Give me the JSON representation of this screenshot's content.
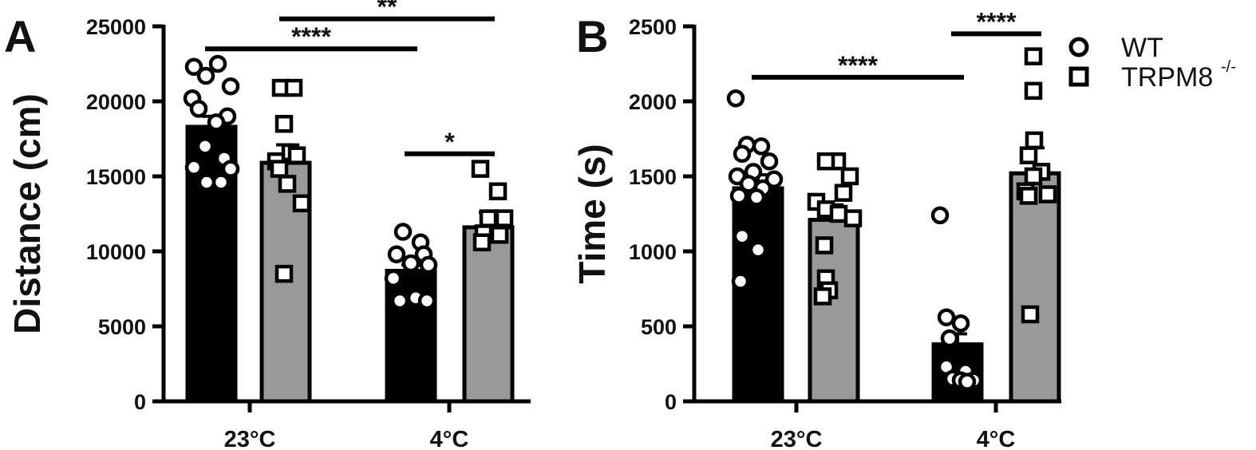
{
  "colors": {
    "wt_bar": "#000000",
    "ko_bar": "#999999",
    "marker_fill": "#ffffff",
    "marker_stroke": "#000000",
    "axis": "#000000"
  },
  "legend": {
    "placement": "top-right",
    "items": [
      {
        "label": "WT",
        "marker": "circle"
      },
      {
        "label": "TRPM8",
        "superscript": "-/-",
        "marker": "square"
      }
    ]
  },
  "chart_data": [
    {
      "panel": "A",
      "type": "bar",
      "ylabel": "Distance (cm)",
      "ylim": [
        0,
        25000
      ],
      "yticks": [
        0,
        5000,
        10000,
        15000,
        20000,
        25000
      ],
      "ytick_labels": [
        "0",
        "5000",
        "10000",
        "15000",
        "20000",
        "25000"
      ],
      "categories": [
        "23°C",
        "4°C"
      ],
      "series": [
        {
          "name": "WT",
          "marker": "circle",
          "values": [
            18300,
            8700
          ],
          "sem": [
            700,
            400
          ],
          "points": [
            [
              22300,
              21700,
              22500,
              21000,
              20200,
              19000,
              19500,
              18600,
              17000,
              16200,
              15600,
              15500,
              14600,
              14600
            ],
            [
              11300,
              10600,
              9800,
              9800,
              9200,
              9100,
              8200,
              6900,
              6700,
              6700
            ]
          ]
        },
        {
          "name": "TRPM8-/-",
          "marker": "square",
          "values": [
            15900,
            11600
          ],
          "sem": [
            1200,
            1000
          ],
          "points": [
            [
              20900,
              20900,
              18500,
              16600,
              16400,
              16000,
              15500,
              14500,
              13200,
              8500
            ],
            [
              15500,
              14000,
              12200,
              12200,
              11200,
              11100,
              10600
            ]
          ]
        }
      ],
      "significance": [
        {
          "label": "****",
          "from": "23°C WT",
          "to": "4°C WT",
          "y": 23500
        },
        {
          "label": "**",
          "from": "23°C TRPM8-/-",
          "to": "4°C TRPM8-/-",
          "y": 25500
        },
        {
          "label": "*",
          "from": "4°C WT",
          "to": "4°C TRPM8-/-",
          "y": 16500
        }
      ]
    },
    {
      "panel": "B",
      "type": "bar",
      "ylabel": "Time (s)",
      "ylim": [
        0,
        2500
      ],
      "yticks": [
        0,
        500,
        1000,
        1500,
        2000,
        2500
      ],
      "ytick_labels": [
        "0",
        "500",
        "1000",
        "1500",
        "2000",
        "2500"
      ],
      "categories": [
        "23°C",
        "4°C"
      ],
      "series": [
        {
          "name": "WT",
          "marker": "circle",
          "values": [
            1420,
            380
          ],
          "sem": [
            90,
            70
          ],
          "points": [
            [
              2020,
              1710,
              1700,
              1650,
              1600,
              1530,
              1500,
              1480,
              1450,
              1420,
              1370,
              1360,
              1100,
              1010,
              800
            ],
            [
              1240,
              560,
              520,
              420,
              230,
              200,
              150,
              140,
              140,
              130
            ]
          ]
        },
        {
          "name": "TRPM8-/-",
          "marker": "square",
          "values": [
            1210,
            1520
          ],
          "sem": [
            100,
            170
          ],
          "points": [
            [
              1600,
              1600,
              1500,
              1390,
              1330,
              1280,
              1250,
              1220,
              1040,
              820,
              740,
              700
            ],
            [
              2300,
              2070,
              1740,
              1640,
              1530,
              1500,
              1400,
              1380,
              1370,
              580
            ]
          ]
        }
      ],
      "significance": [
        {
          "label": "****",
          "from": "23°C WT",
          "to": "4°C WT",
          "y": 2160
        },
        {
          "label": "****",
          "from": "4°C WT",
          "to": "4°C TRPM8-/-",
          "y": 2450
        }
      ]
    }
  ]
}
